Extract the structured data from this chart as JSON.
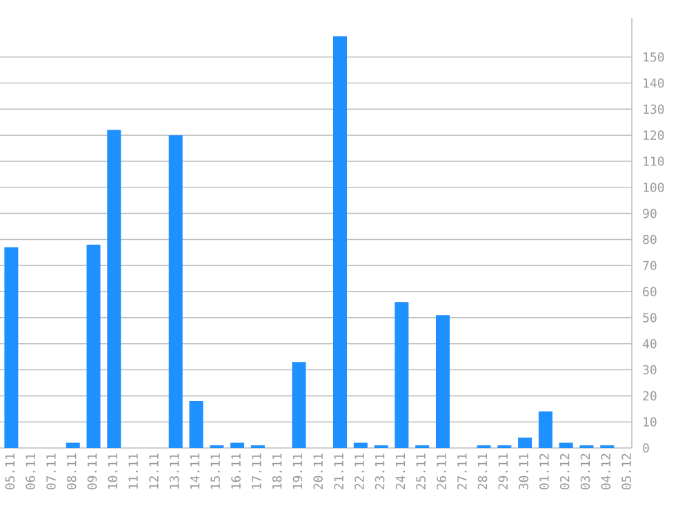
{
  "chart_data": {
    "type": "bar",
    "categories": [
      "05.11",
      "06.11",
      "07.11",
      "08.11",
      "09.11",
      "10.11",
      "11.11",
      "12.11",
      "13.11",
      "14.11",
      "15.11",
      "16.11",
      "17.11",
      "18.11",
      "19.11",
      "20.11",
      "21.11",
      "22.11",
      "23.11",
      "24.11",
      "25.11",
      "26.11",
      "27.11",
      "28.11",
      "29.11",
      "30.11",
      "01.12",
      "02.12",
      "03.12",
      "04.12",
      "05.12"
    ],
    "values": [
      77,
      0,
      0,
      2,
      78,
      122,
      0,
      0,
      120,
      18,
      1,
      2,
      1,
      0,
      33,
      0,
      158,
      2,
      1,
      56,
      1,
      51,
      0,
      1,
      1,
      4,
      14,
      2,
      1,
      1,
      0
    ],
    "color": "#1e90ff",
    "ylim": [
      0,
      165
    ],
    "yticks": [
      0,
      10,
      20,
      30,
      40,
      50,
      60,
      70,
      80,
      90,
      100,
      110,
      120,
      130,
      140,
      150
    ],
    "grid": "y"
  }
}
